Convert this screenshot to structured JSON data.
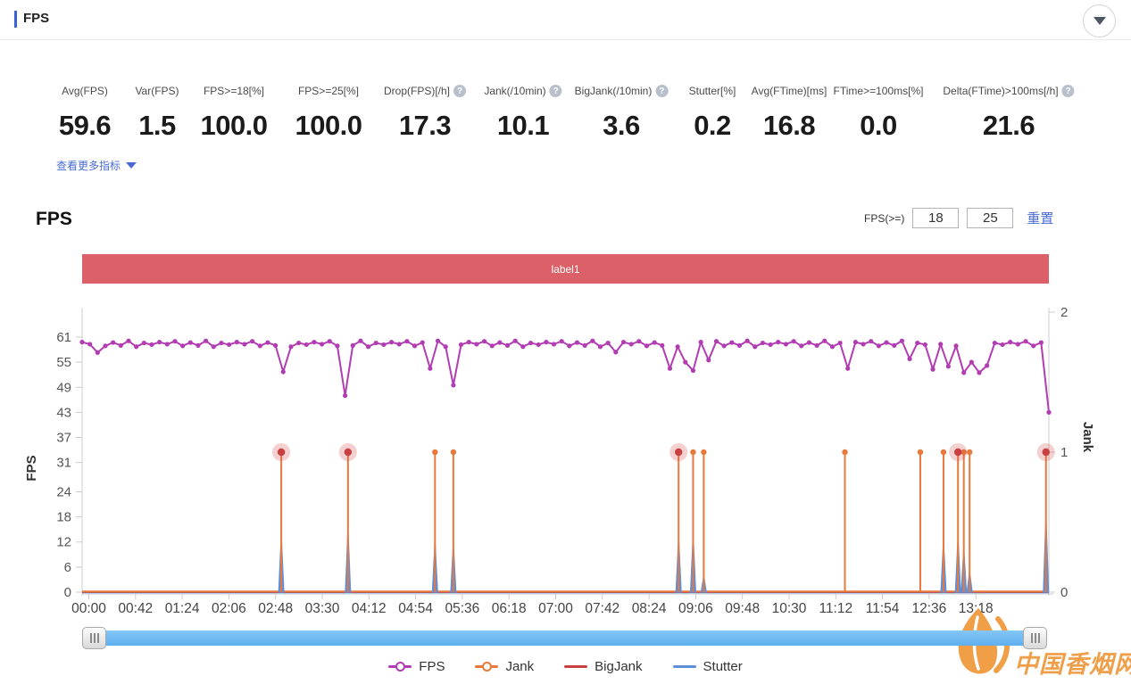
{
  "header": {
    "title": "FPS"
  },
  "stats": {
    "items": [
      {
        "label": "Avg(FPS)",
        "value": "59.6",
        "help": false
      },
      {
        "label": "Var(FPS)",
        "value": "1.5",
        "help": false
      },
      {
        "label": "FPS>=18[%]",
        "value": "100.0",
        "help": false
      },
      {
        "label": "FPS>=25[%]",
        "value": "100.0",
        "help": false
      },
      {
        "label": "Drop(FPS)[/h]",
        "value": "17.3",
        "help": true
      },
      {
        "label": "Jank(/10min)",
        "value": "10.1",
        "help": true
      },
      {
        "label": "BigJank(/10min)",
        "value": "3.6",
        "help": true
      },
      {
        "label": "Stutter[%]",
        "value": "0.2",
        "help": false
      },
      {
        "label": "Avg(FTime)[ms]",
        "value": "16.8",
        "help": false
      },
      {
        "label": "FTime>=100ms[%]",
        "value": "0.0",
        "help": false
      },
      {
        "label": "Delta(FTime)>100ms[/h]",
        "value": "21.6",
        "help": true
      }
    ],
    "more_label": "查看更多指标"
  },
  "filter": {
    "section_title": "FPS",
    "label": "FPS(>=)",
    "min_value": "18",
    "max_value": "25",
    "reset_label": "重置"
  },
  "banner": {
    "label": "label1",
    "color": "#dc6068"
  },
  "chart_data": {
    "type": "line",
    "x_axis": {
      "labels": [
        "00:00",
        "00:42",
        "01:24",
        "02:06",
        "02:48",
        "03:30",
        "04:12",
        "04:54",
        "05:36",
        "06:18",
        "07:00",
        "07:42",
        "08:24",
        "09:06",
        "09:48",
        "10:30",
        "11:12",
        "11:54",
        "12:36",
        "13:18"
      ]
    },
    "y_left": {
      "label": "FPS",
      "ticks": [
        61,
        55,
        49,
        43,
        37,
        31,
        24,
        18,
        12,
        6,
        0
      ],
      "range": [
        0,
        61
      ]
    },
    "y_right": {
      "label": "Jank",
      "ticks": [
        2,
        1,
        0
      ],
      "range": [
        0,
        2
      ]
    },
    "grid": false,
    "legend_position": "bottom",
    "series": [
      {
        "name": "FPS",
        "color": "#b23cb2",
        "axis": "left",
        "type": "line-with-dots",
        "x_start": 0,
        "x_step": 0.008,
        "values": [
          59.8,
          59.3,
          57.3,
          58.9,
          59.7,
          59.0,
          60.1,
          58.7,
          59.6,
          59.2,
          59.8,
          59.3,
          60.0,
          58.9,
          59.7,
          59.0,
          60.1,
          58.7,
          59.6,
          59.2,
          59.8,
          59.3,
          60.0,
          58.9,
          59.7,
          59.0,
          52.7,
          58.7,
          59.6,
          59.2,
          59.8,
          59.3,
          60.0,
          58.9,
          47.0,
          59.0,
          60.1,
          58.7,
          59.6,
          59.2,
          59.8,
          59.3,
          60.0,
          58.9,
          59.7,
          53.5,
          60.1,
          58.7,
          49.5,
          59.2,
          59.8,
          59.3,
          60.0,
          58.9,
          59.7,
          59.0,
          60.1,
          58.7,
          59.6,
          59.2,
          59.8,
          59.3,
          60.0,
          58.9,
          59.7,
          59.0,
          60.1,
          58.7,
          59.6,
          57.4,
          59.8,
          59.3,
          60.0,
          58.9,
          59.7,
          59.0,
          53.5,
          58.7,
          55.0,
          53.0,
          59.8,
          55.5,
          60.0,
          58.9,
          59.7,
          59.0,
          60.1,
          58.7,
          59.6,
          59.2,
          59.8,
          59.3,
          60.0,
          58.9,
          59.7,
          59.0,
          60.1,
          58.7,
          59.6,
          53.5,
          59.8,
          59.3,
          60.0,
          58.9,
          59.7,
          59.0,
          60.1,
          55.8,
          59.6,
          59.2,
          53.3,
          59.3,
          54.0,
          58.9,
          52.5,
          55.0,
          52.5,
          54.2,
          59.6,
          59.2,
          59.8,
          59.3,
          60.0,
          58.9,
          59.7,
          43.0
        ]
      },
      {
        "name": "Jank",
        "color": "#e8793a",
        "axis": "right",
        "type": "spikes",
        "baseline": 0,
        "spikes": [
          {
            "x": 0.206,
            "value": 1
          },
          {
            "x": 0.275,
            "value": 1
          },
          {
            "x": 0.365,
            "value": 1
          },
          {
            "x": 0.384,
            "value": 1
          },
          {
            "x": 0.617,
            "value": 1
          },
          {
            "x": 0.632,
            "value": 1
          },
          {
            "x": 0.643,
            "value": 1
          },
          {
            "x": 0.789,
            "value": 1
          },
          {
            "x": 0.867,
            "value": 1
          },
          {
            "x": 0.891,
            "value": 1
          },
          {
            "x": 0.906,
            "value": 1
          },
          {
            "x": 0.912,
            "value": 1
          },
          {
            "x": 0.918,
            "value": 1
          },
          {
            "x": 0.997,
            "value": 1
          }
        ]
      },
      {
        "name": "BigJank",
        "color": "#c94042",
        "axis": "right",
        "type": "event-dots",
        "baseline": 0,
        "events": [
          {
            "x": 0.206,
            "value": 1
          },
          {
            "x": 0.275,
            "value": 1
          },
          {
            "x": 0.617,
            "value": 1
          },
          {
            "x": 0.906,
            "value": 1
          },
          {
            "x": 0.997,
            "value": 1
          }
        ],
        "halo_color": "rgba(214,86,86,0.28)"
      },
      {
        "name": "Stutter",
        "color": "#5f8fd9",
        "axis": "right",
        "type": "spikes",
        "baseline": 0,
        "spikes": [
          {
            "x": 0.206,
            "value": 0.42
          },
          {
            "x": 0.275,
            "value": 0.46
          },
          {
            "x": 0.365,
            "value": 0.38
          },
          {
            "x": 0.384,
            "value": 0.36
          },
          {
            "x": 0.617,
            "value": 0.4
          },
          {
            "x": 0.632,
            "value": 0.42
          },
          {
            "x": 0.643,
            "value": 0.12
          },
          {
            "x": 0.891,
            "value": 0.38
          },
          {
            "x": 0.906,
            "value": 0.4
          },
          {
            "x": 0.912,
            "value": 0.32
          },
          {
            "x": 0.918,
            "value": 0.15
          },
          {
            "x": 0.997,
            "value": 0.56
          }
        ]
      }
    ]
  },
  "legend": {
    "items": [
      {
        "name": "FPS",
        "color": "#b23cb2",
        "marker": "ring"
      },
      {
        "name": "Jank",
        "color": "#e8793a",
        "marker": "ring"
      },
      {
        "name": "BigJank",
        "color": "#c94042",
        "marker": "line"
      },
      {
        "name": "Stutter",
        "color": "#5f8fd9",
        "marker": "line"
      }
    ]
  },
  "watermark": {
    "text": "中国香烟网",
    "color": "#ef9a40"
  },
  "theme": {
    "link_color": "#4a6bd4",
    "accent_bar": "#3a62d8",
    "scrollbar_blue": "#5fb0ef",
    "axis_line": "#cccccc"
  }
}
